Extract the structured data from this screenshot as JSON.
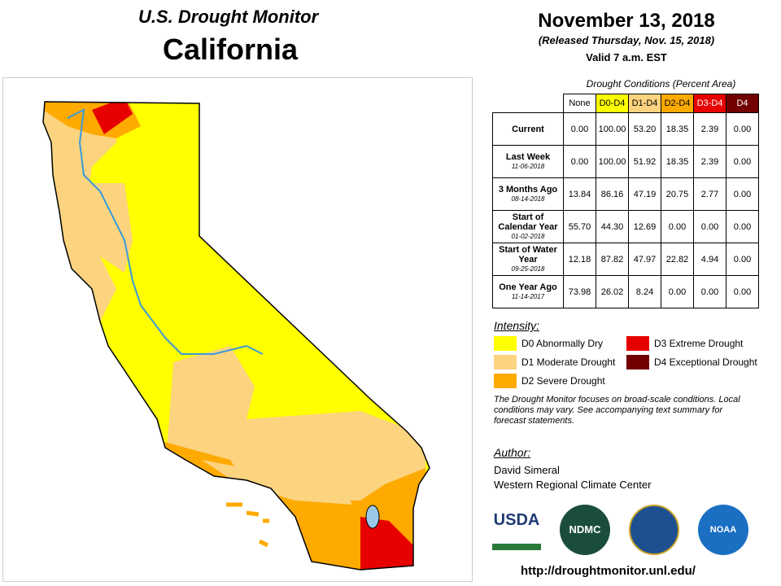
{
  "header": {
    "title": "U.S. Drought Monitor",
    "state": "California",
    "date": "November 13, 2018",
    "released": "(Released Thursday, Nov. 15, 2018)",
    "valid": "Valid 7 a.m. EST"
  },
  "table": {
    "caption": "Drought Conditions (Percent Area)",
    "columns": [
      {
        "label": "None",
        "color": "#ffffff",
        "text_color": "#000000"
      },
      {
        "label": "D0-D4",
        "color": "#ffff00",
        "text_color": "#000000"
      },
      {
        "label": "D1-D4",
        "color": "#fcd37f",
        "text_color": "#000000"
      },
      {
        "label": "D2-D4",
        "color": "#ffaa00",
        "text_color": "#000000"
      },
      {
        "label": "D3-D4",
        "color": "#e60000",
        "text_color": "#ffffff"
      },
      {
        "label": "D4",
        "color": "#730000",
        "text_color": "#ffffff"
      }
    ],
    "rows": [
      {
        "label": "Current",
        "date": null,
        "values": [
          "0.00",
          "100.00",
          "53.20",
          "18.35",
          "2.39",
          "0.00"
        ]
      },
      {
        "label": "Last Week",
        "date": "11-06-2018",
        "values": [
          "0.00",
          "100.00",
          "51.92",
          "18.35",
          "2.39",
          "0.00"
        ]
      },
      {
        "label": "3 Months Ago",
        "date": "08-14-2018",
        "values": [
          "13.84",
          "86.16",
          "47.19",
          "20.75",
          "2.77",
          "0.00"
        ]
      },
      {
        "label": "Start of Calendar Year",
        "date": "01-02-2018",
        "values": [
          "55.70",
          "44.30",
          "12.69",
          "0.00",
          "0.00",
          "0.00"
        ]
      },
      {
        "label": "Start of Water Year",
        "date": "09-25-2018",
        "values": [
          "12.18",
          "87.82",
          "47.97",
          "22.82",
          "4.94",
          "0.00"
        ]
      },
      {
        "label": "One Year Ago",
        "date": "11-14-2017",
        "values": [
          "73.98",
          "26.02",
          "8.24",
          "0.00",
          "0.00",
          "0.00"
        ]
      }
    ]
  },
  "legend": {
    "title": "Intensity:",
    "items": [
      {
        "label": "D0 Abnormally Dry",
        "color": "#ffff00"
      },
      {
        "label": "D3 Extreme Drought",
        "color": "#e60000"
      },
      {
        "label": "D1 Moderate Drought",
        "color": "#fcd37f"
      },
      {
        "label": "D4 Exceptional Drought",
        "color": "#730000"
      },
      {
        "label": "D2 Severe Drought",
        "color": "#ffaa00"
      }
    ]
  },
  "note": "The Drought Monitor focuses on broad-scale conditions. Local conditions may vary. See accompanying text summary for forecast statements.",
  "author": {
    "heading": "Author:",
    "lines": [
      "David Simeral",
      "Western Regional Climate Center"
    ]
  },
  "logos": [
    "USDA",
    "NDMC",
    "NOAA"
  ],
  "url": "http://droughtmonitor.unl.edu/"
}
